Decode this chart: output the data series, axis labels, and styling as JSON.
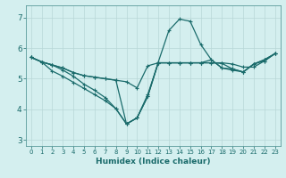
{
  "title": "",
  "xlabel": "Humidex (Indice chaleur)",
  "ylabel": "",
  "bg_color": "#d4efef",
  "line_color": "#1a6b6b",
  "grid_color": "#b8d8d8",
  "xlim": [
    -0.5,
    23.5
  ],
  "ylim": [
    2.8,
    7.4
  ],
  "xticks": [
    0,
    1,
    2,
    3,
    4,
    5,
    6,
    7,
    8,
    9,
    10,
    11,
    12,
    13,
    14,
    15,
    16,
    17,
    18,
    19,
    20,
    21,
    22,
    23
  ],
  "yticks": [
    3,
    4,
    5,
    6,
    7
  ],
  "lines": [
    [
      5.7,
      5.55,
      5.45,
      5.35,
      5.2,
      5.1,
      5.05,
      5.0,
      4.95,
      4.9,
      4.7,
      5.42,
      5.52,
      5.52,
      5.52,
      5.52,
      5.52,
      5.52,
      5.52,
      5.48,
      5.38,
      5.38,
      5.58,
      5.82
    ],
    [
      5.7,
      5.55,
      5.45,
      5.28,
      5.08,
      4.82,
      4.62,
      4.38,
      4.02,
      3.52,
      3.72,
      4.42,
      5.55,
      6.58,
      6.95,
      6.88,
      6.12,
      5.62,
      5.35,
      5.28,
      5.22,
      5.48,
      5.62,
      5.82
    ],
    [
      5.7,
      5.55,
      5.25,
      5.08,
      4.88,
      4.68,
      4.48,
      4.28,
      4.02,
      3.52,
      3.72,
      4.42,
      5.52,
      5.52,
      5.52,
      5.52,
      5.52,
      5.62,
      5.35,
      5.32,
      5.22,
      5.48,
      5.62,
      5.82
    ],
    [
      5.7,
      5.55,
      5.45,
      5.35,
      5.2,
      5.1,
      5.05,
      5.0,
      4.95,
      3.52,
      3.72,
      4.48,
      5.52,
      5.52,
      5.52,
      5.52,
      5.52,
      5.52,
      5.5,
      5.32,
      5.22,
      5.48,
      5.58,
      5.82
    ]
  ],
  "marker": "+",
  "markersize": 3.0,
  "linewidth": 0.9
}
